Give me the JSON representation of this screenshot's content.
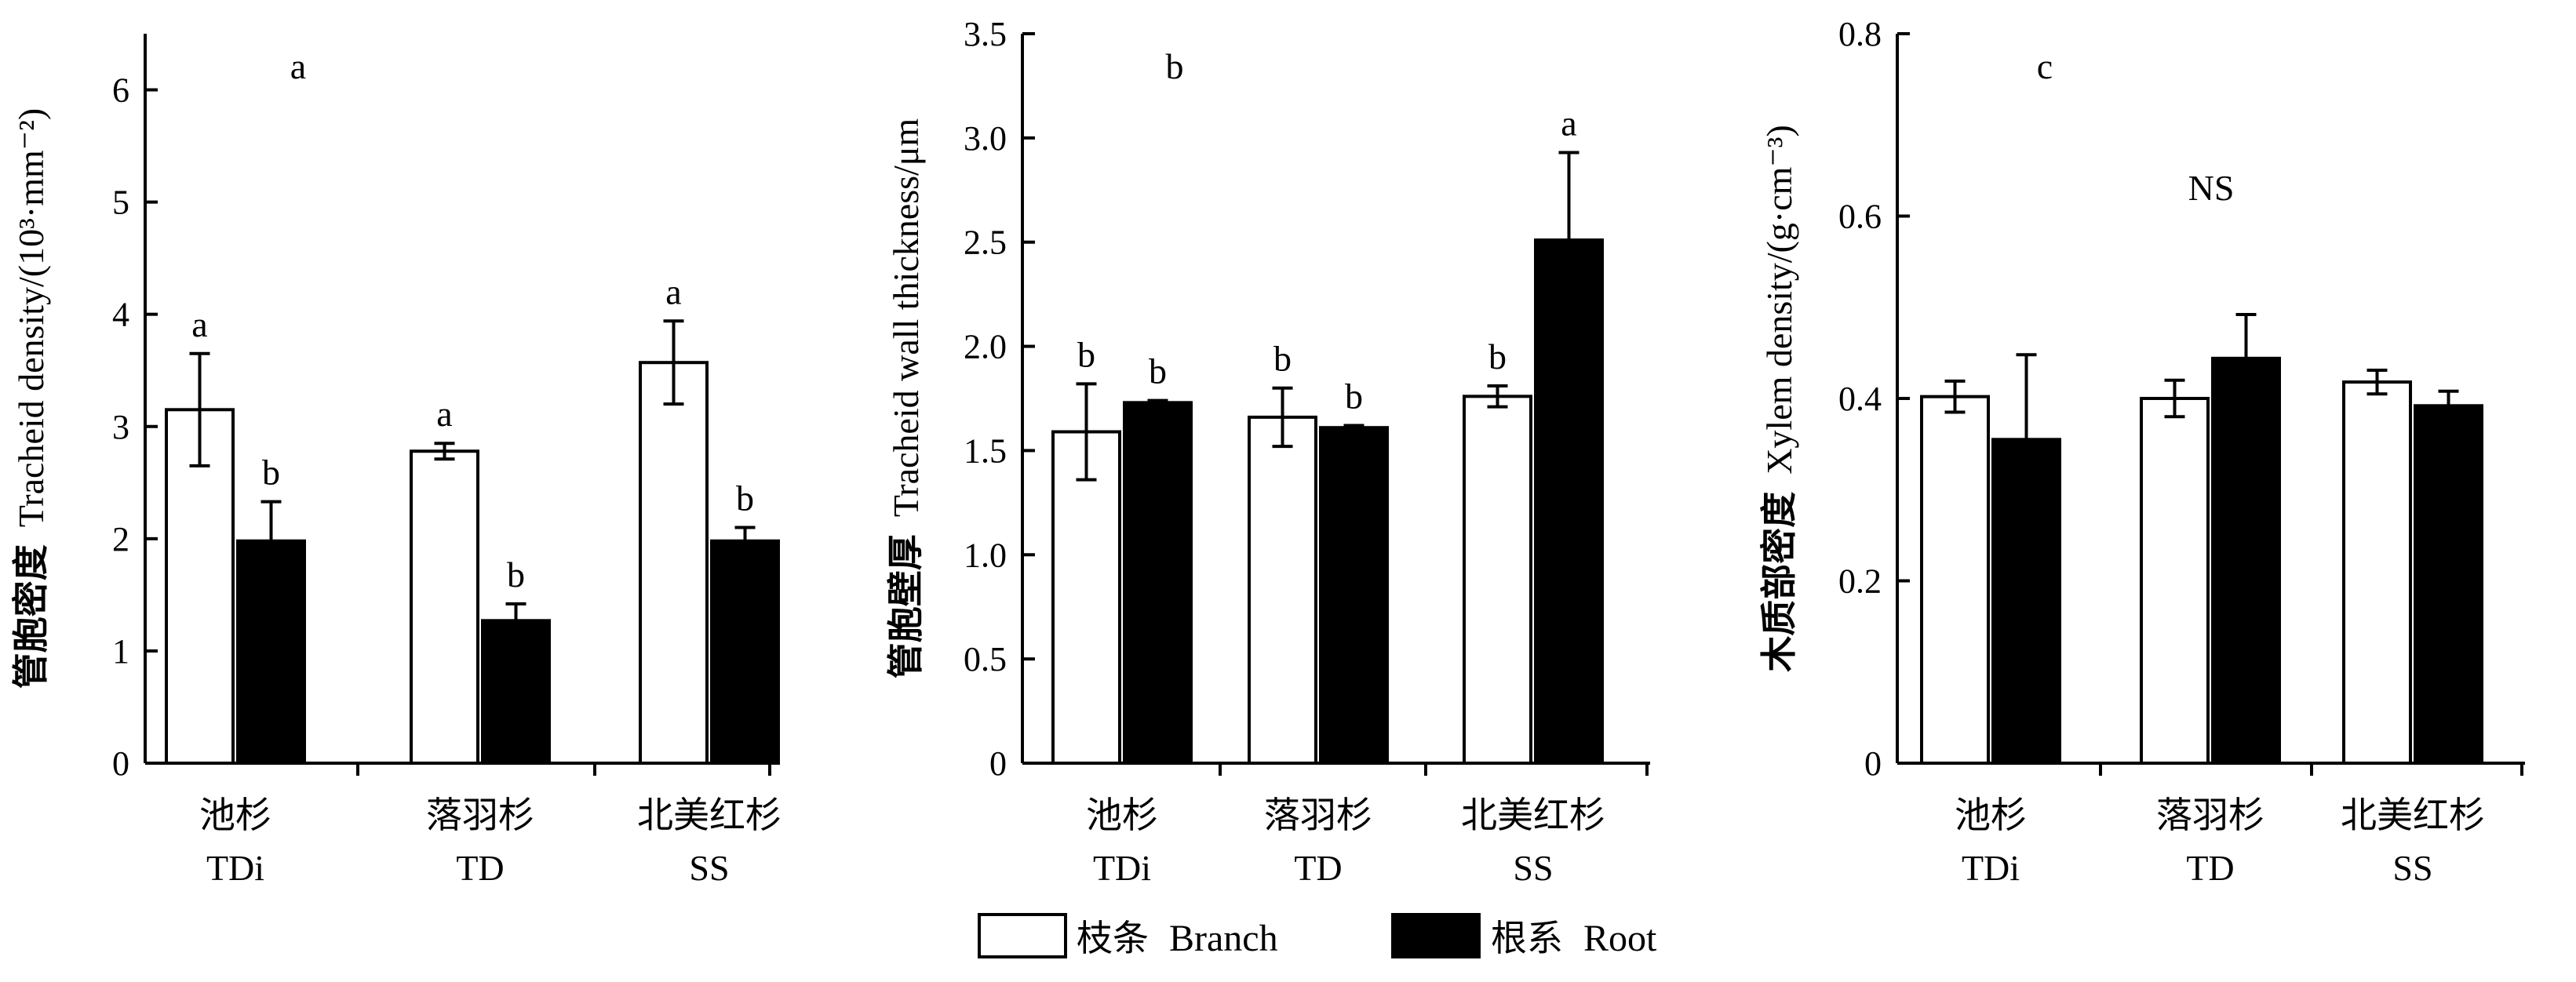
{
  "legend": {
    "position": "bottom-center",
    "items": [
      {
        "label_cn": "枝条",
        "label_en": "Branch",
        "color": "#ffffff"
      },
      {
        "label_cn": "根系",
        "label_en": "Root",
        "color": "#000000"
      }
    ]
  },
  "chart_data": [
    {
      "type": "bar",
      "panel_label": "a",
      "ylabel_cn": "管胞密度",
      "ylabel_en": "Tracheid density/(10³·mm⁻²)",
      "ylim": [
        0,
        6.5
      ],
      "yticks": [
        0,
        1,
        2,
        3,
        4,
        5,
        6
      ],
      "ytick_labels": [
        "0",
        "1",
        "2",
        "3",
        "4",
        "5",
        "6"
      ],
      "categories_cn": [
        "池杉",
        "落羽杉",
        "北美红杉"
      ],
      "categories_en": [
        "TDi",
        "TD",
        "SS"
      ],
      "series": [
        {
          "name": "Branch",
          "values": [
            3.15,
            2.78,
            3.57
          ],
          "errors": [
            0.5,
            0.07,
            0.37
          ],
          "letters": [
            "a",
            "a",
            "a"
          ]
        },
        {
          "name": "Root",
          "values": [
            1.98,
            1.27,
            1.98
          ],
          "errors": [
            0.35,
            0.15,
            0.12
          ],
          "letters": [
            "b",
            "b",
            "b"
          ]
        }
      ],
      "annotation": ""
    },
    {
      "type": "bar",
      "panel_label": "b",
      "ylabel_cn": "管胞壁厚",
      "ylabel_en": "Tracheid wall thickness/μm",
      "ylim": [
        0,
        3.5
      ],
      "yticks": [
        0,
        0.5,
        1,
        1.5,
        2,
        2.5,
        3,
        3.5
      ],
      "ytick_labels": [
        "0",
        "0.5",
        "1.0",
        "1.5",
        "2.0",
        "2.5",
        "3.0",
        "3.5"
      ],
      "categories_cn": [
        "池杉",
        "落羽杉",
        "北美红杉"
      ],
      "categories_en": [
        "TDi",
        "TD",
        "SS"
      ],
      "series": [
        {
          "name": "Branch",
          "values": [
            1.59,
            1.66,
            1.76
          ],
          "errors": [
            0.23,
            0.14,
            0.05
          ],
          "letters": [
            "b",
            "b",
            "b"
          ]
        },
        {
          "name": "Root",
          "values": [
            1.73,
            1.61,
            2.51
          ],
          "errors": [
            0.01,
            0.01,
            0.42
          ],
          "letters": [
            "b",
            "b",
            "a"
          ]
        }
      ],
      "annotation": ""
    },
    {
      "type": "bar",
      "panel_label": "c",
      "ylabel_cn": "木质部密度",
      "ylabel_en": "Xylem density/(g·cm⁻³)",
      "ylim": [
        0,
        0.8
      ],
      "yticks": [
        0,
        0.2,
        0.4,
        0.6,
        0.8
      ],
      "ytick_labels": [
        "0",
        "0.2",
        "0.4",
        "0.6",
        "0.8"
      ],
      "categories_cn": [
        "池杉",
        "落羽杉",
        "北美红杉"
      ],
      "categories_en": [
        "TDi",
        "TD",
        "SS"
      ],
      "series": [
        {
          "name": "Branch",
          "values": [
            0.402,
            0.4,
            0.418
          ],
          "errors": [
            0.017,
            0.02,
            0.013
          ],
          "letters": [
            "",
            "",
            ""
          ]
        },
        {
          "name": "Root",
          "values": [
            0.355,
            0.444,
            0.392
          ],
          "errors": [
            0.093,
            0.048,
            0.016
          ],
          "letters": [
            "",
            "",
            ""
          ]
        }
      ],
      "annotation": "NS"
    }
  ]
}
